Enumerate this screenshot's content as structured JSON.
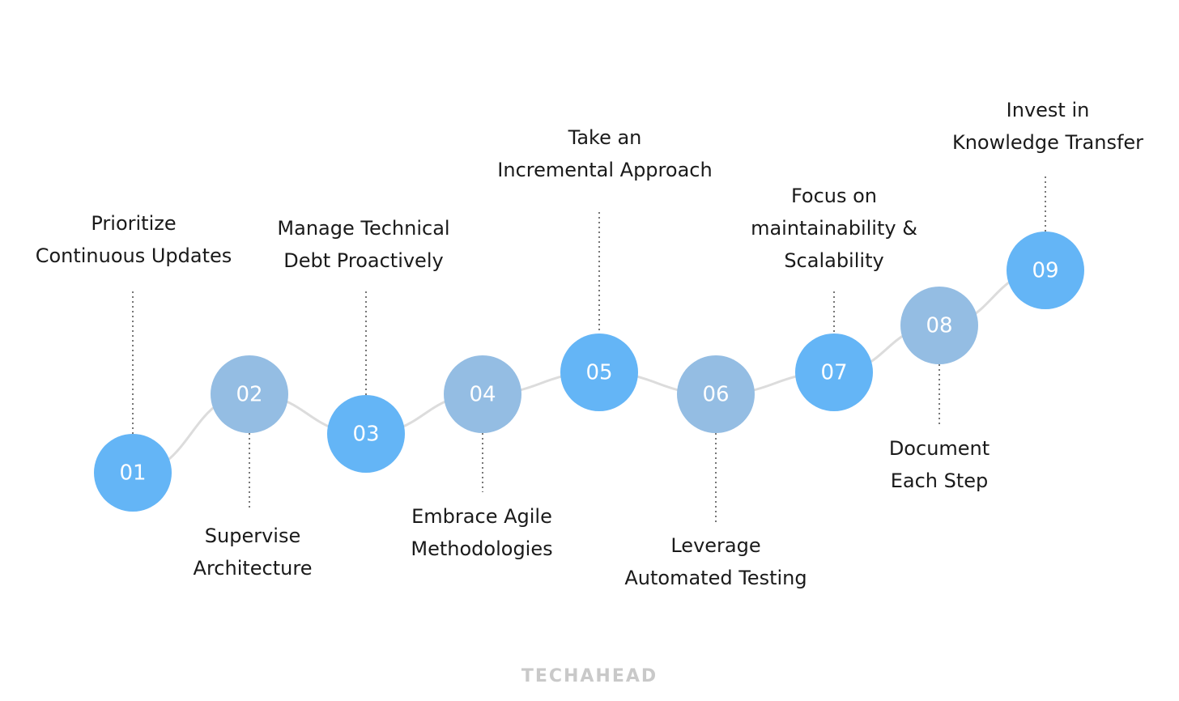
{
  "nodes": [
    {
      "number": "01",
      "label": [
        "Prioritize",
        "Continuous Updates"
      ]
    },
    {
      "number": "02",
      "label": [
        "Supervise",
        "Architecture"
      ]
    },
    {
      "number": "03",
      "label": [
        "Manage Technical",
        "Debt Proactively"
      ]
    },
    {
      "number": "04",
      "label": [
        "Embrace Agile",
        "Methodologies"
      ]
    },
    {
      "number": "05",
      "label": [
        "Take an",
        "Incremental Approach"
      ]
    },
    {
      "number": "06",
      "label": [
        "Leverage",
        "Automated Testing"
      ]
    },
    {
      "number": "07",
      "label": [
        "Focus on",
        "maintainability &",
        "Scalability"
      ]
    },
    {
      "number": "08",
      "label": [
        "Document",
        "Each Step"
      ]
    },
    {
      "number": "09",
      "label": [
        "Invest in",
        "Knowledge Transfer"
      ]
    }
  ],
  "footer": {
    "brand": "TECHAHEAD"
  }
}
